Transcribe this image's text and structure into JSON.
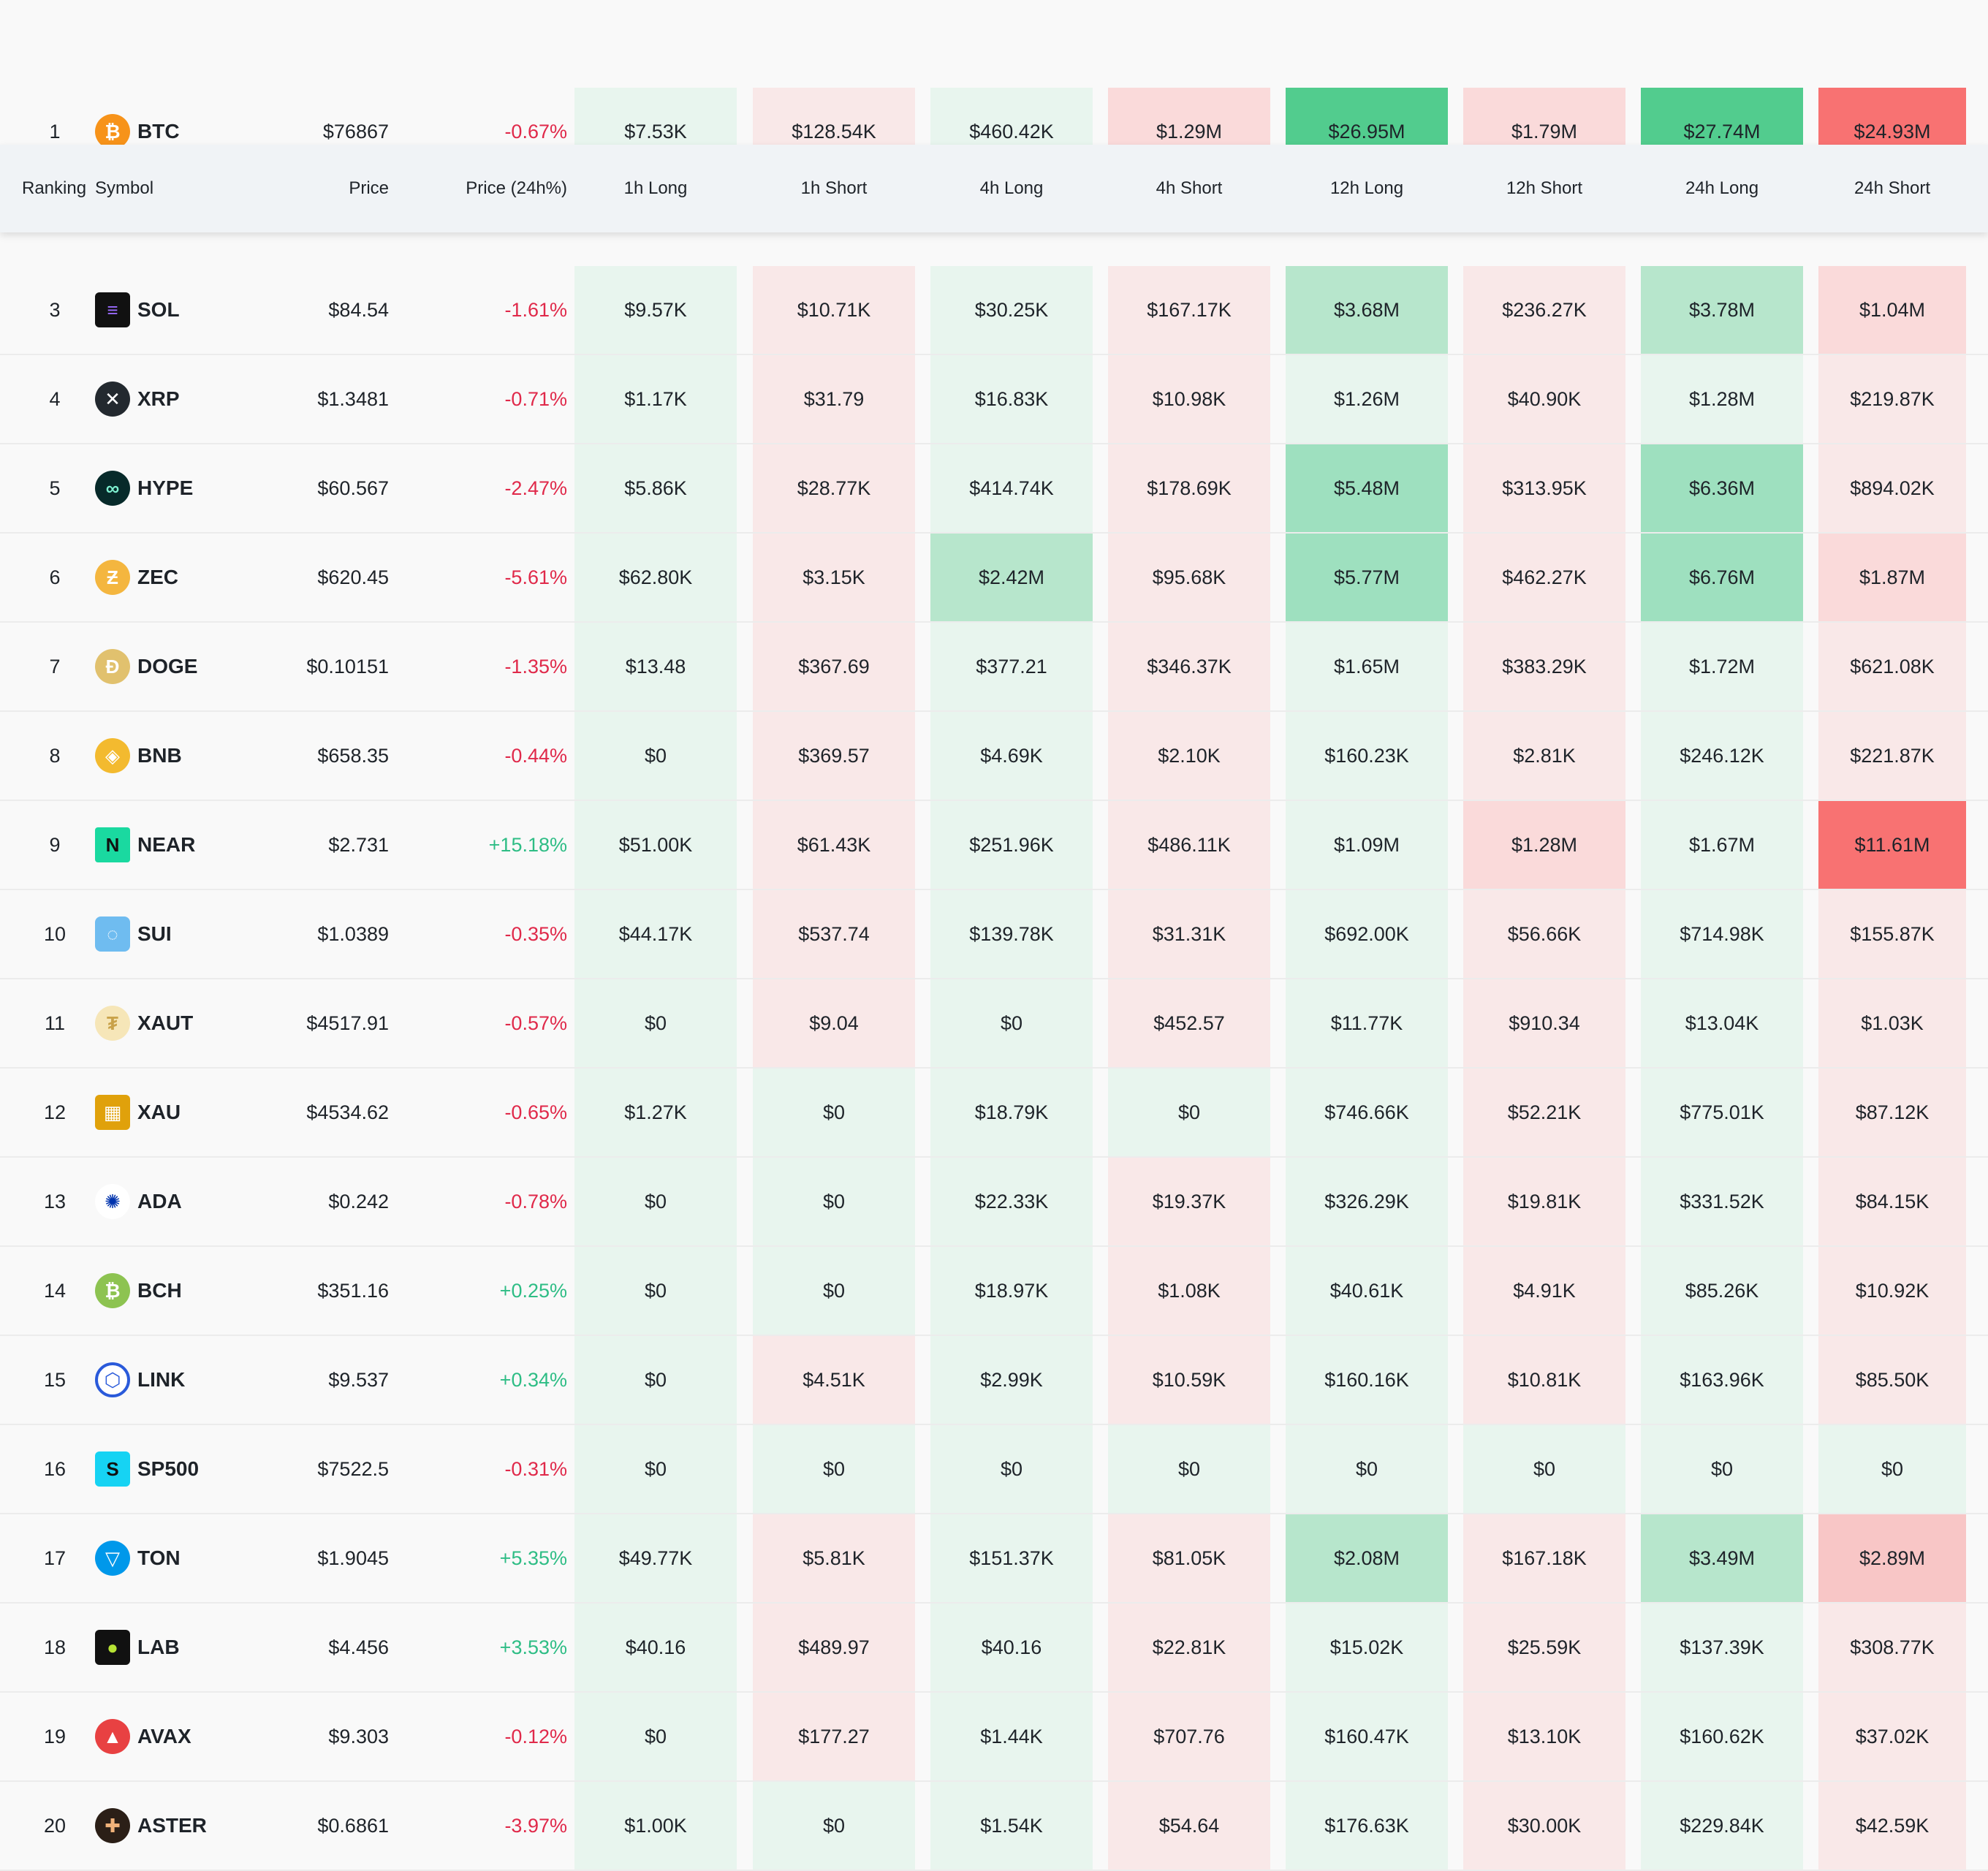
{
  "header": {
    "ranking": "Ranking",
    "symbol": "Symbol",
    "price": "Price",
    "change": "Price (24h%)",
    "h1l": "1h Long",
    "h1s": "1h Short",
    "h4l": "4h Long",
    "h4s": "4h Short",
    "h12l": "12h Long",
    "h12s": "12h Short",
    "h24l": "24h Long",
    "h24s": "24h Short"
  },
  "colors": {
    "long_light": "#e8f5ee",
    "long_mid": "#b7e6cc",
    "long_strong": "#9ee0bf",
    "long_max": "#52cc8e",
    "short_light": "#f9e8e8",
    "short_mid": "#fadada",
    "short_strong": "#f8c6c6",
    "short_max": "#f87272"
  },
  "rows": [
    {
      "rank": "1",
      "symbol": "BTC",
      "icon": "bitcoin-icon",
      "price": "$76867",
      "change": "-0.67%",
      "dir": "down",
      "vals": [
        "$7.53K",
        "$128.54K",
        "$460.42K",
        "$1.29M",
        "$26.95M",
        "$1.79M",
        "$27.74M",
        "$24.93M"
      ]
    },
    {
      "rank": "3",
      "symbol": "SOL",
      "icon": "solana-icon",
      "price": "$84.54",
      "change": "-1.61%",
      "dir": "down",
      "vals": [
        "$9.57K",
        "$10.71K",
        "$30.25K",
        "$167.17K",
        "$3.68M",
        "$236.27K",
        "$3.78M",
        "$1.04M"
      ]
    },
    {
      "rank": "4",
      "symbol": "XRP",
      "icon": "xrp-icon",
      "price": "$1.3481",
      "change": "-0.71%",
      "dir": "down",
      "vals": [
        "$1.17K",
        "$31.79",
        "$16.83K",
        "$10.98K",
        "$1.26M",
        "$40.90K",
        "$1.28M",
        "$219.87K"
      ]
    },
    {
      "rank": "5",
      "symbol": "HYPE",
      "icon": "hype-icon",
      "price": "$60.567",
      "change": "-2.47%",
      "dir": "down",
      "vals": [
        "$5.86K",
        "$28.77K",
        "$414.74K",
        "$178.69K",
        "$5.48M",
        "$313.95K",
        "$6.36M",
        "$894.02K"
      ]
    },
    {
      "rank": "6",
      "symbol": "ZEC",
      "icon": "zcash-icon",
      "price": "$620.45",
      "change": "-5.61%",
      "dir": "down",
      "vals": [
        "$62.80K",
        "$3.15K",
        "$2.42M",
        "$95.68K",
        "$5.77M",
        "$462.27K",
        "$6.76M",
        "$1.87M"
      ]
    },
    {
      "rank": "7",
      "symbol": "DOGE",
      "icon": "doge-icon",
      "price": "$0.10151",
      "change": "-1.35%",
      "dir": "down",
      "vals": [
        "$13.48",
        "$367.69",
        "$377.21",
        "$346.37K",
        "$1.65M",
        "$383.29K",
        "$1.72M",
        "$621.08K"
      ]
    },
    {
      "rank": "8",
      "symbol": "BNB",
      "icon": "bnb-icon",
      "price": "$658.35",
      "change": "-0.44%",
      "dir": "down",
      "vals": [
        "$0",
        "$369.57",
        "$4.69K",
        "$2.10K",
        "$160.23K",
        "$2.81K",
        "$246.12K",
        "$221.87K"
      ]
    },
    {
      "rank": "9",
      "symbol": "NEAR",
      "icon": "near-icon",
      "price": "$2.731",
      "change": "+15.18%",
      "dir": "up",
      "vals": [
        "$51.00K",
        "$61.43K",
        "$251.96K",
        "$486.11K",
        "$1.09M",
        "$1.28M",
        "$1.67M",
        "$11.61M"
      ]
    },
    {
      "rank": "10",
      "symbol": "SUI",
      "icon": "sui-icon",
      "price": "$1.0389",
      "change": "-0.35%",
      "dir": "down",
      "vals": [
        "$44.17K",
        "$537.74",
        "$139.78K",
        "$31.31K",
        "$692.00K",
        "$56.66K",
        "$714.98K",
        "$155.87K"
      ]
    },
    {
      "rank": "11",
      "symbol": "XAUT",
      "icon": "tether-gold-icon",
      "price": "$4517.91",
      "change": "-0.57%",
      "dir": "down",
      "vals": [
        "$0",
        "$9.04",
        "$0",
        "$452.57",
        "$11.77K",
        "$910.34",
        "$13.04K",
        "$1.03K"
      ]
    },
    {
      "rank": "12",
      "symbol": "XAU",
      "icon": "gold-bars-icon",
      "price": "$4534.62",
      "change": "-0.65%",
      "dir": "down",
      "vals": [
        "$1.27K",
        "$0",
        "$18.79K",
        "$0",
        "$746.66K",
        "$52.21K",
        "$775.01K",
        "$87.12K"
      ]
    },
    {
      "rank": "13",
      "symbol": "ADA",
      "icon": "cardano-icon",
      "price": "$0.242",
      "change": "-0.78%",
      "dir": "down",
      "vals": [
        "$0",
        "$0",
        "$22.33K",
        "$19.37K",
        "$326.29K",
        "$19.81K",
        "$331.52K",
        "$84.15K"
      ]
    },
    {
      "rank": "14",
      "symbol": "BCH",
      "icon": "bitcoin-cash-icon",
      "price": "$351.16",
      "change": "+0.25%",
      "dir": "up",
      "vals": [
        "$0",
        "$0",
        "$18.97K",
        "$1.08K",
        "$40.61K",
        "$4.91K",
        "$85.26K",
        "$10.92K"
      ]
    },
    {
      "rank": "15",
      "symbol": "LINK",
      "icon": "chainlink-icon",
      "price": "$9.537",
      "change": "+0.34%",
      "dir": "up",
      "vals": [
        "$0",
        "$4.51K",
        "$2.99K",
        "$10.59K",
        "$160.16K",
        "$10.81K",
        "$163.96K",
        "$85.50K"
      ]
    },
    {
      "rank": "16",
      "symbol": "SP500",
      "icon": "sp500-icon",
      "price": "$7522.5",
      "change": "-0.31%",
      "dir": "down",
      "vals": [
        "$0",
        "$0",
        "$0",
        "$0",
        "$0",
        "$0",
        "$0",
        "$0"
      ]
    },
    {
      "rank": "17",
      "symbol": "TON",
      "icon": "toncoin-icon",
      "price": "$1.9045",
      "change": "+5.35%",
      "dir": "up",
      "vals": [
        "$49.77K",
        "$5.81K",
        "$151.37K",
        "$81.05K",
        "$2.08M",
        "$167.18K",
        "$3.49M",
        "$2.89M"
      ]
    },
    {
      "rank": "18",
      "symbol": "LAB",
      "icon": "lab-icon",
      "price": "$4.456",
      "change": "+3.53%",
      "dir": "up",
      "vals": [
        "$40.16",
        "$489.97",
        "$40.16",
        "$22.81K",
        "$15.02K",
        "$25.59K",
        "$137.39K",
        "$308.77K"
      ]
    },
    {
      "rank": "19",
      "symbol": "AVAX",
      "icon": "avalanche-icon",
      "price": "$9.303",
      "change": "-0.12%",
      "dir": "down",
      "vals": [
        "$0",
        "$177.27",
        "$1.44K",
        "$707.76",
        "$160.47K",
        "$13.10K",
        "$160.62K",
        "$37.02K"
      ]
    },
    {
      "rank": "20",
      "symbol": "ASTER",
      "icon": "aster-icon",
      "price": "$0.6861",
      "change": "-3.97%",
      "dir": "down",
      "vals": [
        "$1.00K",
        "$0",
        "$1.54K",
        "$54.64",
        "$176.63K",
        "$30.00K",
        "$229.84K",
        "$42.59K"
      ]
    }
  ]
}
